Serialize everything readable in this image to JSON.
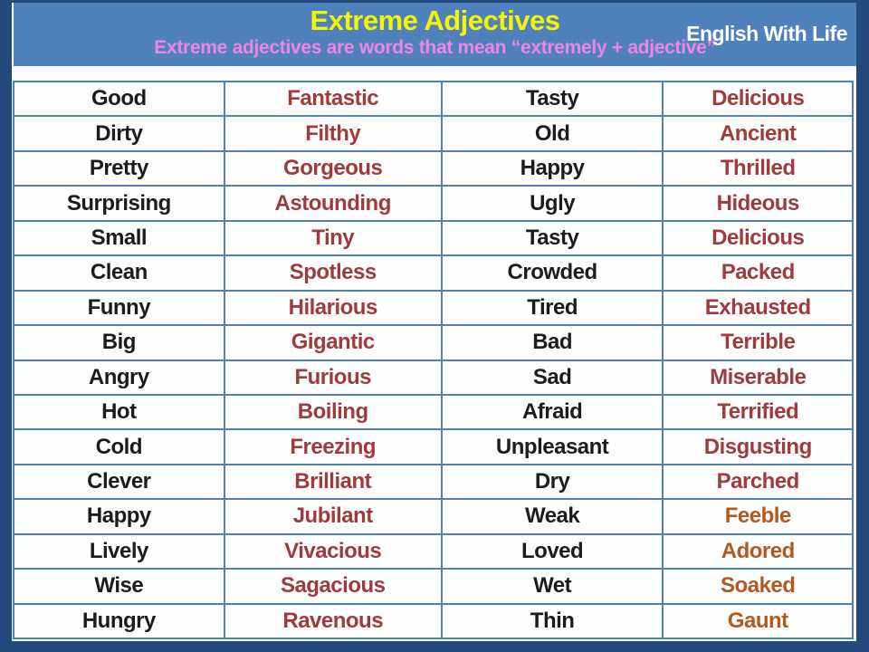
{
  "frame_color": "#24497c",
  "header": {
    "title": "Extreme Adjectives",
    "brand": "English With Life",
    "subtitle": "Extreme adjectives  are words that mean “extremely + adjective”",
    "background": "#4f81bd",
    "title_color": "#f5f500",
    "brand_color": "#ffffff",
    "subtitle_color": "#ee85e5"
  },
  "table": {
    "border_color": "#4f81bd",
    "colors": {
      "base": "#1c1c1c",
      "extreme": "#9e3b3b",
      "extreme_alt": "#b1591e"
    },
    "column_widths": [
      "25.1%",
      "25.9%",
      "26.4%",
      "22.6%"
    ],
    "rows": [
      [
        {
          "text": "Good",
          "color": "base"
        },
        {
          "text": "Fantastic",
          "color": "extreme"
        },
        {
          "text": "Tasty",
          "color": "base"
        },
        {
          "text": "Delicious",
          "color": "extreme"
        }
      ],
      [
        {
          "text": "Dirty",
          "color": "base"
        },
        {
          "text": "Filthy",
          "color": "extreme"
        },
        {
          "text": "Old",
          "color": "base"
        },
        {
          "text": "Ancient",
          "color": "extreme"
        }
      ],
      [
        {
          "text": "Pretty",
          "color": "base"
        },
        {
          "text": "Gorgeous",
          "color": "extreme"
        },
        {
          "text": "Happy",
          "color": "base"
        },
        {
          "text": "Thrilled",
          "color": "extreme"
        }
      ],
      [
        {
          "text": "Surprising",
          "color": "base"
        },
        {
          "text": "Astounding",
          "color": "extreme"
        },
        {
          "text": "Ugly",
          "color": "base"
        },
        {
          "text": "Hideous",
          "color": "extreme"
        }
      ],
      [
        {
          "text": "Small",
          "color": "base"
        },
        {
          "text": "Tiny",
          "color": "extreme"
        },
        {
          "text": "Tasty",
          "color": "base"
        },
        {
          "text": "Delicious",
          "color": "extreme"
        }
      ],
      [
        {
          "text": "Clean",
          "color": "base"
        },
        {
          "text": "Spotless",
          "color": "extreme"
        },
        {
          "text": "Crowded",
          "color": "base"
        },
        {
          "text": "Packed",
          "color": "extreme"
        }
      ],
      [
        {
          "text": "Funny",
          "color": "base"
        },
        {
          "text": "Hilarious",
          "color": "extreme"
        },
        {
          "text": "Tired",
          "color": "base"
        },
        {
          "text": "Exhausted",
          "color": "extreme"
        }
      ],
      [
        {
          "text": "Big",
          "color": "base"
        },
        {
          "text": "Gigantic",
          "color": "extreme"
        },
        {
          "text": "Bad",
          "color": "base"
        },
        {
          "text": "Terrible",
          "color": "extreme"
        }
      ],
      [
        {
          "text": "Angry",
          "color": "base"
        },
        {
          "text": "Furious",
          "color": "extreme"
        },
        {
          "text": "Sad",
          "color": "base"
        },
        {
          "text": "Miserable",
          "color": "extreme"
        }
      ],
      [
        {
          "text": "Hot",
          "color": "base"
        },
        {
          "text": "Boiling",
          "color": "extreme"
        },
        {
          "text": "Afraid",
          "color": "base"
        },
        {
          "text": "Terrified",
          "color": "extreme"
        }
      ],
      [
        {
          "text": "Cold",
          "color": "base"
        },
        {
          "text": "Freezing",
          "color": "extreme"
        },
        {
          "text": "Unpleasant",
          "color": "base"
        },
        {
          "text": "Disgusting",
          "color": "extreme"
        }
      ],
      [
        {
          "text": "Clever",
          "color": "base"
        },
        {
          "text": "Brilliant",
          "color": "extreme"
        },
        {
          "text": "Dry",
          "color": "base"
        },
        {
          "text": "Parched",
          "color": "extreme"
        }
      ],
      [
        {
          "text": "Happy",
          "color": "base"
        },
        {
          "text": "Jubilant",
          "color": "extreme"
        },
        {
          "text": "Weak",
          "color": "base"
        },
        {
          "text": "Feeble",
          "color": "extreme_alt"
        }
      ],
      [
        {
          "text": "Lively",
          "color": "base"
        },
        {
          "text": "Vivacious",
          "color": "extreme"
        },
        {
          "text": "Loved",
          "color": "base"
        },
        {
          "text": "Adored",
          "color": "extreme_alt"
        }
      ],
      [
        {
          "text": "Wise",
          "color": "base"
        },
        {
          "text": "Sagacious",
          "color": "extreme"
        },
        {
          "text": "Wet",
          "color": "base"
        },
        {
          "text": "Soaked",
          "color": "extreme_alt"
        }
      ],
      [
        {
          "text": "Hungry",
          "color": "base"
        },
        {
          "text": "Ravenous",
          "color": "extreme"
        },
        {
          "text": "Thin",
          "color": "base"
        },
        {
          "text": "Gaunt",
          "color": "extreme_alt"
        }
      ]
    ]
  }
}
